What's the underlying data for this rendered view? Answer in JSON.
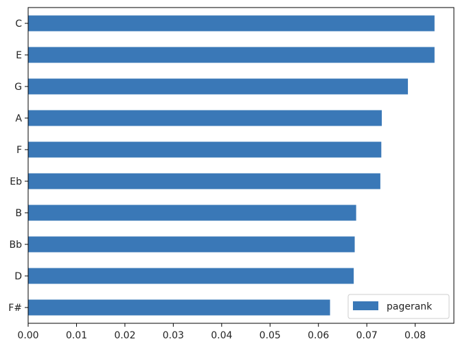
{
  "chart_data": {
    "type": "bar",
    "orientation": "horizontal",
    "categories": [
      "C",
      "E",
      "G",
      "A",
      "F",
      "Eb",
      "B",
      "Bb",
      "D",
      "F#"
    ],
    "series": [
      {
        "name": "pagerank",
        "values": [
          0.084,
          0.084,
          0.0785,
          0.0731,
          0.073,
          0.0728,
          0.0678,
          0.0675,
          0.0673,
          0.0624
        ]
      }
    ],
    "xlim": [
      0.0,
      0.088
    ],
    "xticks": [
      "0.00",
      "0.01",
      "0.02",
      "0.03",
      "0.04",
      "0.05",
      "0.06",
      "0.07",
      "0.08"
    ],
    "title": "",
    "xlabel": "",
    "ylabel": "",
    "grid": false,
    "legend_position": "bottom-right",
    "colors": {
      "bar": "#3a78b7",
      "axis": "#000000"
    }
  }
}
